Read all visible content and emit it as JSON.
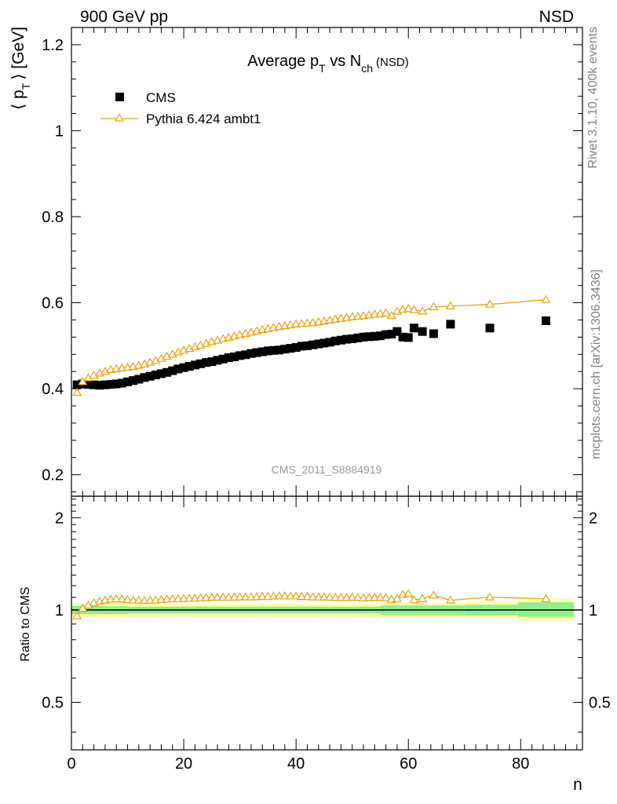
{
  "header": {
    "left": "900 GeV pp",
    "right": "NSD"
  },
  "side": {
    "rivet": "Rivet 3.1.10,  400k events",
    "mcplots": "mcplots.cern.ch [arXiv:1306.3436]"
  },
  "colors": {
    "data": "#000000",
    "mc": "#e8a30c",
    "band_inner": "#90ee90",
    "band_outer": "#ffff99"
  },
  "chart_data": [
    {
      "type": "scatter",
      "title": "Average p_T vs N_ch (NSD)",
      "title_parts": {
        "main": "Average p",
        "sub1": "T",
        "mid": " vs N",
        "sub2": "ch",
        "tail": "(NSD)"
      },
      "ylabel": "⟨ p_T ⟩ [GeV]",
      "ylabel_parts": {
        "open": "⟨ p",
        "sub": "T",
        "close": "⟩ [GeV]"
      },
      "xlabel": "n",
      "watermark": "CMS_2011_S8884919",
      "xlim": [
        0,
        91
      ],
      "ylim": [
        0.15,
        1.24
      ],
      "yticks": [
        0.2,
        0.4,
        0.6,
        0.8,
        1,
        1.2
      ],
      "ytick_labels": [
        "0.2",
        "0.4",
        "0.6",
        "0.8",
        "1",
        "1.2"
      ],
      "legend": {
        "position": "top-left",
        "entries": [
          "CMS",
          "Pythia 6.424 ambt1"
        ]
      },
      "series": [
        {
          "name": "CMS",
          "marker": "square",
          "x": [
            1,
            2,
            3,
            4,
            5,
            6,
            7,
            8,
            9,
            10,
            11,
            12,
            13,
            14,
            15,
            16,
            17,
            18,
            19,
            20,
            21,
            22,
            23,
            24,
            25,
            26,
            27,
            28,
            29,
            30,
            31,
            32,
            33,
            34,
            35,
            36,
            37,
            38,
            39,
            40,
            41,
            42,
            43,
            44,
            45,
            46,
            47,
            48,
            49,
            50,
            51,
            52,
            53,
            54,
            55,
            56,
            57,
            58,
            59,
            60,
            61,
            62.5,
            64.5,
            67.5,
            74.5,
            84.5
          ],
          "y": [
            0.409,
            0.411,
            0.41,
            0.409,
            0.408,
            0.409,
            0.41,
            0.411,
            0.413,
            0.416,
            0.419,
            0.422,
            0.426,
            0.429,
            0.432,
            0.435,
            0.438,
            0.442,
            0.446,
            0.449,
            0.452,
            0.455,
            0.458,
            0.461,
            0.463,
            0.466,
            0.469,
            0.472,
            0.474,
            0.477,
            0.479,
            0.482,
            0.484,
            0.486,
            0.488,
            0.489,
            0.49,
            0.492,
            0.494,
            0.496,
            0.499,
            0.5,
            0.502,
            0.504,
            0.506,
            0.508,
            0.511,
            0.513,
            0.515,
            0.516,
            0.518,
            0.52,
            0.521,
            0.522,
            0.523,
            0.526,
            0.527,
            0.533,
            0.52,
            0.519,
            0.541,
            0.533,
            0.528,
            0.55,
            0.541,
            0.558
          ]
        },
        {
          "name": "Pythia 6.424 ambt1",
          "marker": "triangle",
          "x": [
            1,
            2,
            3,
            4,
            5,
            6,
            7,
            8,
            9,
            10,
            11,
            12,
            13,
            14,
            15,
            16,
            17,
            18,
            19,
            20,
            21,
            22,
            23,
            24,
            25,
            26,
            27,
            28,
            29,
            30,
            31,
            32,
            33,
            34,
            35,
            36,
            37,
            38,
            39,
            40,
            41,
            42,
            43,
            44,
            45,
            46,
            47,
            48,
            49,
            50,
            51,
            52,
            53,
            54,
            55,
            56,
            57,
            58,
            59,
            60,
            61,
            62.5,
            64.5,
            67.5,
            74.5,
            84.5
          ],
          "y": [
            0.391,
            0.416,
            0.425,
            0.431,
            0.436,
            0.44,
            0.444,
            0.446,
            0.448,
            0.449,
            0.451,
            0.454,
            0.457,
            0.461,
            0.465,
            0.47,
            0.475,
            0.48,
            0.485,
            0.489,
            0.493,
            0.497,
            0.501,
            0.505,
            0.509,
            0.512,
            0.516,
            0.519,
            0.522,
            0.525,
            0.528,
            0.531,
            0.534,
            0.537,
            0.539,
            0.542,
            0.544,
            0.546,
            0.548,
            0.55,
            0.551,
            0.552,
            0.553,
            0.555,
            0.557,
            0.559,
            0.561,
            0.563,
            0.565,
            0.567,
            0.568,
            0.569,
            0.571,
            0.573,
            0.574,
            0.576,
            0.57,
            0.58,
            0.584,
            0.586,
            0.583,
            0.58,
            0.59,
            0.592,
            0.596,
            0.607
          ]
        }
      ]
    },
    {
      "type": "line",
      "ylabel": "Ratio to CMS",
      "xlabel": "n",
      "xlim": [
        0,
        91
      ],
      "ylim": [
        0.35,
        2.35
      ],
      "yscale": "log",
      "yticks": [
        0.5,
        1,
        2
      ],
      "ytick_labels": [
        "0.5",
        "1",
        "2"
      ],
      "xticks": [
        0,
        20,
        40,
        60,
        80
      ],
      "xtick_labels": [
        "0",
        "20",
        "40",
        "60",
        "80"
      ],
      "series": [
        {
          "name": "Pythia 6.424 ambt1",
          "x": [
            1,
            2,
            3,
            4,
            5,
            6,
            7,
            8,
            9,
            10,
            11,
            12,
            13,
            14,
            15,
            16,
            17,
            18,
            19,
            20,
            21,
            22,
            23,
            24,
            25,
            26,
            27,
            28,
            29,
            30,
            31,
            32,
            33,
            34,
            35,
            36,
            37,
            38,
            39,
            40,
            41,
            42,
            43,
            44,
            45,
            46,
            47,
            48,
            49,
            50,
            51,
            52,
            53,
            54,
            55,
            56,
            57,
            58,
            59,
            60,
            61,
            62.5,
            64.5,
            67.5,
            74.5,
            84.5
          ],
          "y": [
            0.956,
            1.012,
            1.037,
            1.054,
            1.068,
            1.076,
            1.083,
            1.085,
            1.085,
            1.079,
            1.076,
            1.076,
            1.073,
            1.075,
            1.076,
            1.08,
            1.084,
            1.086,
            1.087,
            1.089,
            1.091,
            1.092,
            1.094,
            1.095,
            1.099,
            1.099,
            1.1,
            1.1,
            1.101,
            1.101,
            1.102,
            1.102,
            1.103,
            1.105,
            1.105,
            1.108,
            1.11,
            1.11,
            1.109,
            1.109,
            1.104,
            1.104,
            1.102,
            1.101,
            1.101,
            1.1,
            1.098,
            1.097,
            1.097,
            1.099,
            1.097,
            1.094,
            1.096,
            1.098,
            1.098,
            1.095,
            1.082,
            1.088,
            1.123,
            1.129,
            1.078,
            1.088,
            1.117,
            1.076,
            1.102,
            1.088
          ]
        }
      ],
      "bands": [
        {
          "from": 0,
          "to": 10,
          "inner": [
            0.97,
            1.03
          ],
          "outer": [
            0.95,
            1.05
          ]
        },
        {
          "from": 10,
          "to": 55,
          "inner": [
            0.975,
            1.025
          ],
          "outer": [
            0.955,
            1.045
          ]
        },
        {
          "from": 55,
          "to": 70,
          "inner": [
            0.965,
            1.035
          ],
          "outer": [
            0.945,
            1.055
          ]
        },
        {
          "from": 70,
          "to": 79.5,
          "inner": [
            0.96,
            1.04
          ],
          "outer": [
            0.94,
            1.06
          ]
        },
        {
          "from": 79.5,
          "to": 89.5,
          "inner": [
            0.95,
            1.06
          ],
          "outer": [
            0.925,
            1.09
          ]
        }
      ]
    }
  ]
}
